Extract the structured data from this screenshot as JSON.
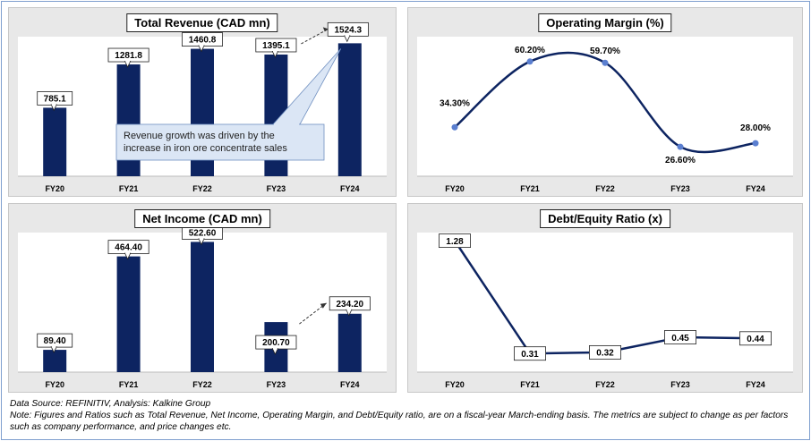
{
  "chart_data": [
    {
      "type": "bar",
      "title": "Total Revenue (CAD mn)",
      "categories": [
        "FY20",
        "FY21",
        "FY22",
        "FY23",
        "FY24"
      ],
      "values": [
        785.1,
        1281.8,
        1460.8,
        1395.1,
        1524.3
      ],
      "value_labels": [
        "785.1",
        "1281.8",
        "1460.8",
        "1395.1",
        "1524.3"
      ],
      "ylim": [
        0,
        1600
      ],
      "grid": false,
      "color": "#0d2461",
      "annotation": "Revenue growth was driven by the increase in iron ore concentrate sales"
    },
    {
      "type": "line",
      "title": "Operating Margin (%)",
      "categories": [
        "FY20",
        "FY21",
        "FY22",
        "FY23",
        "FY24"
      ],
      "values": [
        34.3,
        60.2,
        59.7,
        26.6,
        28.0
      ],
      "value_labels": [
        "34.30%",
        "60.20%",
        "59.70%",
        "26.60%",
        "28.00%"
      ],
      "ylim": [
        15,
        70
      ],
      "grid": false,
      "color": "#0d2461",
      "marker_color": "#5b7fd0"
    },
    {
      "type": "bar",
      "title": "Net Income (CAD mn)",
      "categories": [
        "FY20",
        "FY21",
        "FY22",
        "FY23",
        "FY24"
      ],
      "values": [
        89.4,
        464.4,
        522.6,
        200.7,
        234.2
      ],
      "value_labels": [
        "89.40",
        "464.40",
        "522.60",
        "200.70",
        "234.20"
      ],
      "ylim": [
        0,
        560
      ],
      "grid": false,
      "color": "#0d2461"
    },
    {
      "type": "line",
      "title": "Debt/Equity Ratio (x)",
      "categories": [
        "FY20",
        "FY21",
        "FY22",
        "FY23",
        "FY24"
      ],
      "values": [
        1.28,
        0.31,
        0.32,
        0.45,
        0.44
      ],
      "value_labels": [
        "1.28",
        "0.31",
        "0.32",
        "0.45",
        "0.44"
      ],
      "ylim": [
        0.15,
        1.35
      ],
      "grid": false,
      "color": "#0d2461"
    }
  ],
  "footer": {
    "source": "Data Source: REFINITIV, Analysis: Kalkine Group",
    "note": "Note: Figures and Ratios such as Total Revenue, Net Income, Operating Margin, and Debt/Equity ratio, are on a fiscal-year March-ending basis. The metrics are subject to change as per factors such as company performance, and price changes etc."
  }
}
